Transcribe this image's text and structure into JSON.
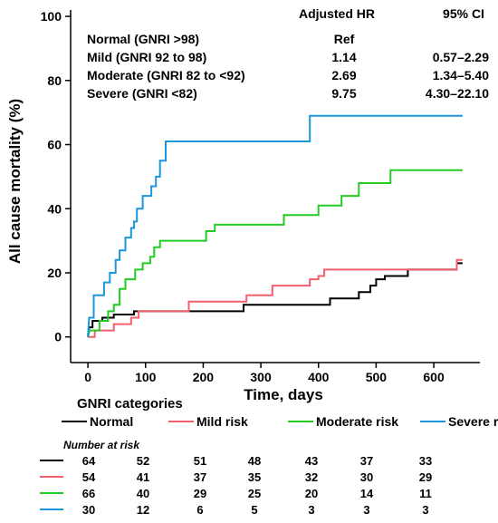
{
  "chart_data": {
    "type": "line",
    "step": true,
    "xlabel": "Time, days",
    "ylabel": "All cause mortality (%)",
    "xlim": [
      -30,
      680
    ],
    "ylim": [
      -8,
      102
    ],
    "xticks": [
      "0",
      "100",
      "200",
      "300",
      "400",
      "500",
      "600"
    ],
    "yticks": [
      "0",
      "20",
      "40",
      "60",
      "80",
      "100"
    ],
    "xtick_values": [
      0,
      100,
      200,
      300,
      400,
      500,
      600
    ],
    "ytick_values": [
      0,
      20,
      40,
      60,
      80,
      100
    ],
    "grid": false,
    "hr_table": {
      "headers": [
        "Adjusted HR",
        "95% CI"
      ],
      "rows": [
        {
          "label": "Normal (GNRI >98)",
          "hr": "Ref",
          "ci": ""
        },
        {
          "label": "Mild (GNRI 92 to 98)",
          "hr": "1.14",
          "ci": "0.57–2.29"
        },
        {
          "label": "Moderate (GNRI 82 to <92)",
          "hr": "2.69",
          "ci": "1.34–5.40"
        },
        {
          "label": "Severe  (GNRI <82)",
          "hr": "9.75",
          "ci": "4.30–22.10"
        }
      ]
    },
    "legend_title": "GNRI categories",
    "legend_placement": "bottom",
    "series": [
      {
        "name": "Normal",
        "color": "#000000",
        "points": [
          [
            0,
            0
          ],
          [
            2,
            3
          ],
          [
            8,
            3
          ],
          [
            8,
            5
          ],
          [
            25,
            5
          ],
          [
            25,
            6
          ],
          [
            45,
            6
          ],
          [
            45,
            7
          ],
          [
            80,
            7
          ],
          [
            80,
            8
          ],
          [
            270,
            8
          ],
          [
            270,
            10
          ],
          [
            420,
            10
          ],
          [
            420,
            12
          ],
          [
            470,
            12
          ],
          [
            470,
            14
          ],
          [
            490,
            14
          ],
          [
            490,
            16
          ],
          [
            500,
            16
          ],
          [
            500,
            18
          ],
          [
            515,
            18
          ],
          [
            515,
            19
          ],
          [
            555,
            19
          ],
          [
            555,
            21
          ],
          [
            640,
            21
          ],
          [
            640,
            23
          ],
          [
            650,
            23
          ]
        ]
      },
      {
        "name": "Mild risk",
        "color": "#f0606e",
        "points": [
          [
            0,
            0
          ],
          [
            8,
            0
          ],
          [
            8,
            0
          ],
          [
            12,
            0
          ],
          [
            12,
            2
          ],
          [
            45,
            2
          ],
          [
            45,
            4
          ],
          [
            75,
            4
          ],
          [
            75,
            6
          ],
          [
            88,
            6
          ],
          [
            88,
            8
          ],
          [
            175,
            8
          ],
          [
            175,
            11
          ],
          [
            275,
            11
          ],
          [
            275,
            13
          ],
          [
            320,
            13
          ],
          [
            320,
            16
          ],
          [
            385,
            16
          ],
          [
            385,
            18
          ],
          [
            400,
            18
          ],
          [
            400,
            19
          ],
          [
            410,
            19
          ],
          [
            410,
            21
          ],
          [
            640,
            21
          ],
          [
            640,
            24
          ],
          [
            650,
            24
          ]
        ]
      },
      {
        "name": "Moderate risk",
        "color": "#22cc22",
        "points": [
          [
            0,
            0
          ],
          [
            3,
            2
          ],
          [
            20,
            2
          ],
          [
            20,
            5
          ],
          [
            35,
            5
          ],
          [
            35,
            8
          ],
          [
            45,
            8
          ],
          [
            45,
            10
          ],
          [
            55,
            10
          ],
          [
            55,
            15
          ],
          [
            65,
            15
          ],
          [
            65,
            18
          ],
          [
            82,
            18
          ],
          [
            82,
            21
          ],
          [
            95,
            21
          ],
          [
            95,
            23
          ],
          [
            108,
            23
          ],
          [
            108,
            25
          ],
          [
            115,
            25
          ],
          [
            115,
            28
          ],
          [
            125,
            28
          ],
          [
            125,
            30
          ],
          [
            205,
            30
          ],
          [
            205,
            33
          ],
          [
            220,
            33
          ],
          [
            220,
            35
          ],
          [
            340,
            35
          ],
          [
            340,
            38
          ],
          [
            400,
            38
          ],
          [
            400,
            41
          ],
          [
            440,
            41
          ],
          [
            440,
            44
          ],
          [
            470,
            44
          ],
          [
            470,
            48
          ],
          [
            525,
            48
          ],
          [
            525,
            52
          ],
          [
            650,
            52
          ]
        ]
      },
      {
        "name": "Severe risk",
        "color": "#1c96dc",
        "points": [
          [
            0,
            0
          ],
          [
            2,
            6
          ],
          [
            10,
            6
          ],
          [
            10,
            13
          ],
          [
            28,
            13
          ],
          [
            28,
            17
          ],
          [
            38,
            17
          ],
          [
            38,
            20
          ],
          [
            48,
            20
          ],
          [
            48,
            24
          ],
          [
            55,
            24
          ],
          [
            55,
            27
          ],
          [
            65,
            27
          ],
          [
            65,
            31
          ],
          [
            75,
            31
          ],
          [
            75,
            34
          ],
          [
            80,
            34
          ],
          [
            80,
            36
          ],
          [
            85,
            36
          ],
          [
            85,
            40
          ],
          [
            95,
            40
          ],
          [
            95,
            44
          ],
          [
            110,
            44
          ],
          [
            110,
            47
          ],
          [
            118,
            47
          ],
          [
            118,
            50
          ],
          [
            125,
            50
          ],
          [
            125,
            55
          ],
          [
            135,
            55
          ],
          [
            135,
            61
          ],
          [
            385,
            61
          ],
          [
            385,
            69
          ],
          [
            650,
            69
          ]
        ]
      }
    ],
    "risk_table": {
      "title": "Number at risk",
      "columns": [
        "64",
        "52",
        "51",
        "48",
        "43",
        "37",
        "33"
      ],
      "rows": [
        {
          "series": "Normal",
          "color": "#000000",
          "values": [
            "64",
            "52",
            "51",
            "48",
            "43",
            "37",
            "33"
          ]
        },
        {
          "series": "Mild risk",
          "color": "#f0606e",
          "values": [
            "54",
            "41",
            "37",
            "35",
            "32",
            "30",
            "29"
          ]
        },
        {
          "series": "Moderate risk",
          "color": "#22cc22",
          "values": [
            "66",
            "40",
            "29",
            "25",
            "20",
            "14",
            "11"
          ]
        },
        {
          "series": "Severe risk",
          "color": "#1c96dc",
          "values": [
            "30",
            "12",
            "6",
            "5",
            "3",
            "3",
            "3"
          ]
        }
      ]
    }
  }
}
